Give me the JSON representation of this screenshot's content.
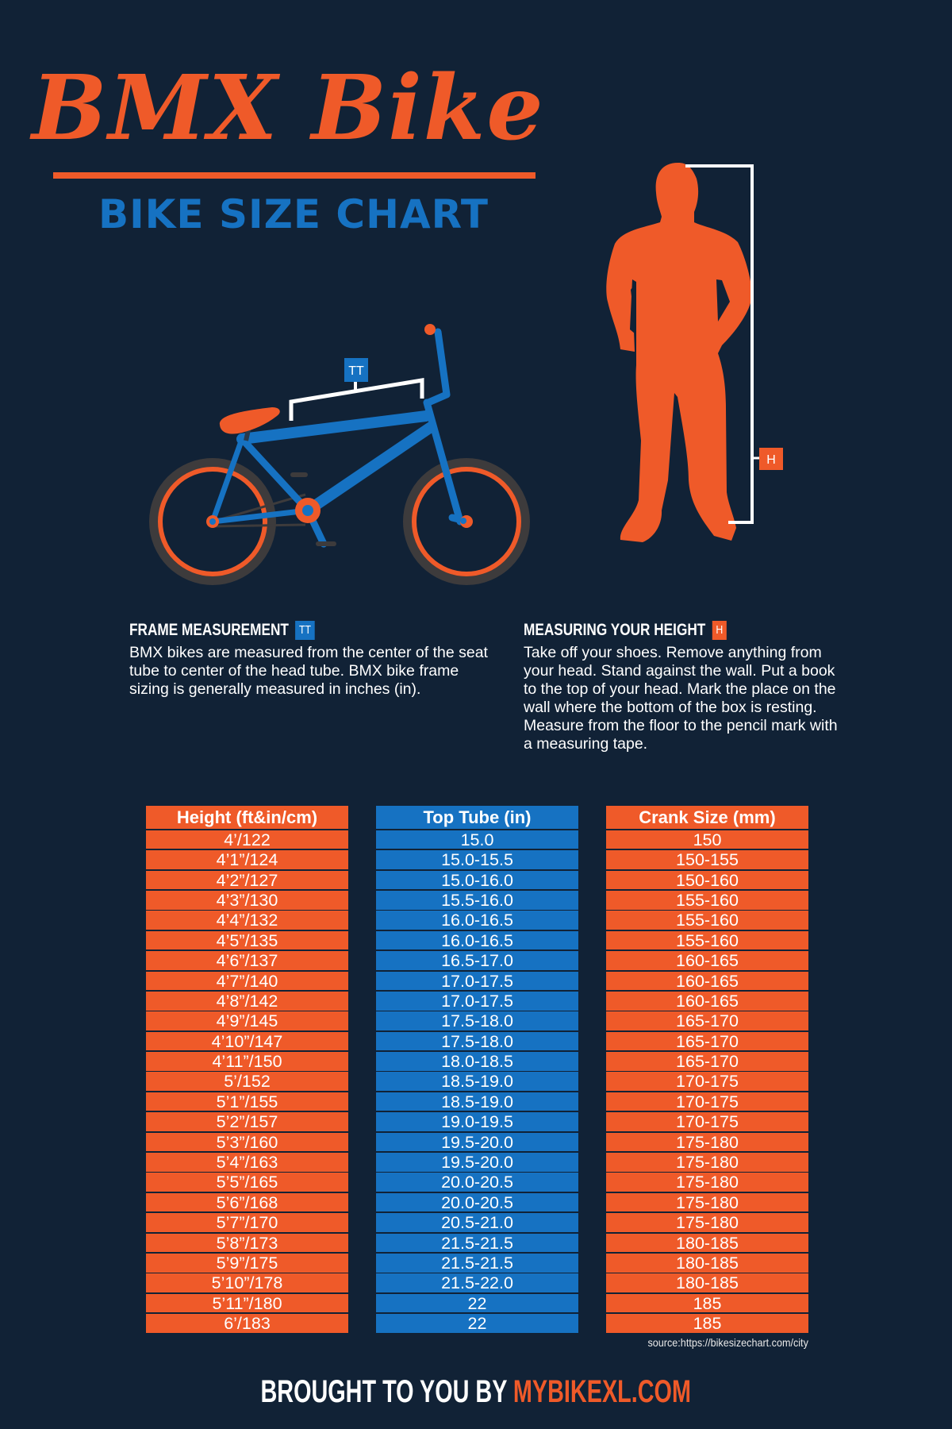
{
  "header": {
    "title": "BMX Bike",
    "subtitle": "BIKE SIZE CHART"
  },
  "illustrations": {
    "bike_tag": "TT",
    "person_tag": "H"
  },
  "frame_measurement": {
    "heading": "FRAME MEASUREMENT",
    "tag": "TT",
    "body": "BMX bikes are measured from the center of the seat tube to center of the head tube. BMX bike frame sizing is generally measured in inches (in)."
  },
  "measuring_height": {
    "heading": "MEASURING YOUR HEIGHT",
    "tag": "H",
    "body": "Take off your shoes. Remove anything from your head. Stand against the wall. Put a book to the top of your head. Mark the place on the wall where the bottom of the box is resting. Measure from the floor to the pencil mark with a measuring tape."
  },
  "colors": {
    "background": "#112236",
    "orange": "#ef5a29",
    "blue": "#1672c2",
    "tire": "#3d3b3c",
    "text": "#ffffff"
  },
  "table": {
    "columns": [
      "Height (ft&in/cm)",
      "Top Tube (in)",
      "Crank Size (mm)"
    ],
    "heights": [
      "4’/122",
      "4’1”/124",
      "4’2”/127",
      "4’3”/130",
      "4’4”/132",
      "4’5”/135",
      "4’6”/137",
      "4’7”/140",
      "4’8”/142",
      "4’9”/145",
      "4’10”/147",
      "4’11”/150",
      "5’/152",
      "5’1”/155",
      "5’2”/157",
      "5’3”/160",
      "5’4”/163",
      "5’5”/165",
      "5’6”/168",
      "5’7”/170",
      "5’8”/173",
      "5’9”/175",
      "5’10”/178",
      "5’11”/180",
      "6’/183"
    ],
    "top_tube": [
      "15.0",
      "15.0-15.5",
      "15.0-16.0",
      "15.5-16.0",
      "16.0-16.5",
      "16.0-16.5",
      "16.5-17.0",
      "17.0-17.5",
      "17.0-17.5",
      "17.5-18.0",
      "17.5-18.0",
      "18.0-18.5",
      "18.5-19.0",
      "18.5-19.0",
      "19.0-19.5",
      "19.5-20.0",
      "19.5-20.0",
      "20.0-20.5",
      "20.0-20.5",
      "20.5-21.0",
      "21.5-21.5",
      "21.5-21.5",
      "21.5-22.0",
      "22",
      "22"
    ],
    "crank": [
      "150",
      "150-155",
      "150-160",
      "155-160",
      "155-160",
      "155-160",
      "160-165",
      "160-165",
      "160-165",
      "165-170",
      "165-170",
      "165-170",
      "170-175",
      "170-175",
      "170-175",
      "175-180",
      "175-180",
      "175-180",
      "175-180",
      "175-180",
      "180-185",
      "180-185",
      "180-185",
      "185",
      "185"
    ]
  },
  "source": "source:https://bikesizechart.com/city",
  "footer": {
    "prefix": "BROUGHT TO YOU BY ",
    "brand": "MYBIKEXL.COM"
  },
  "chart_data": {
    "type": "table",
    "title": "BMX Bike - Bike Size Chart",
    "columns": [
      "Height (ft&in/cm)",
      "Top Tube (in)",
      "Crank Size (mm)"
    ],
    "rows": [
      [
        "4’/122",
        "15.0",
        "150"
      ],
      [
        "4’1”/124",
        "15.0-15.5",
        "150-155"
      ],
      [
        "4’2”/127",
        "15.0-16.0",
        "150-160"
      ],
      [
        "4’3”/130",
        "15.5-16.0",
        "155-160"
      ],
      [
        "4’4”/132",
        "16.0-16.5",
        "155-160"
      ],
      [
        "4’5”/135",
        "16.0-16.5",
        "155-160"
      ],
      [
        "4’6”/137",
        "16.5-17.0",
        "160-165"
      ],
      [
        "4’7”/140",
        "17.0-17.5",
        "160-165"
      ],
      [
        "4’8”/142",
        "17.0-17.5",
        "160-165"
      ],
      [
        "4’9”/145",
        "17.5-18.0",
        "165-170"
      ],
      [
        "4’10”/147",
        "17.5-18.0",
        "165-170"
      ],
      [
        "4’11”/150",
        "18.0-18.5",
        "165-170"
      ],
      [
        "5’/152",
        "18.5-19.0",
        "170-175"
      ],
      [
        "5’1”/155",
        "18.5-19.0",
        "170-175"
      ],
      [
        "5’2”/157",
        "19.0-19.5",
        "170-175"
      ],
      [
        "5’3”/160",
        "19.5-20.0",
        "175-180"
      ],
      [
        "5’4”/163",
        "19.5-20.0",
        "175-180"
      ],
      [
        "5’5”/165",
        "20.0-20.5",
        "175-180"
      ],
      [
        "5’6”/168",
        "20.0-20.5",
        "175-180"
      ],
      [
        "5’7”/170",
        "20.5-21.0",
        "175-180"
      ],
      [
        "5’8”/173",
        "21.5-21.5",
        "180-185"
      ],
      [
        "5’9”/175",
        "21.5-21.5",
        "180-185"
      ],
      [
        "5’10”/178",
        "21.5-22.0",
        "180-185"
      ],
      [
        "5’11”/180",
        "22",
        "185"
      ],
      [
        "6’/183",
        "22",
        "185"
      ]
    ]
  }
}
